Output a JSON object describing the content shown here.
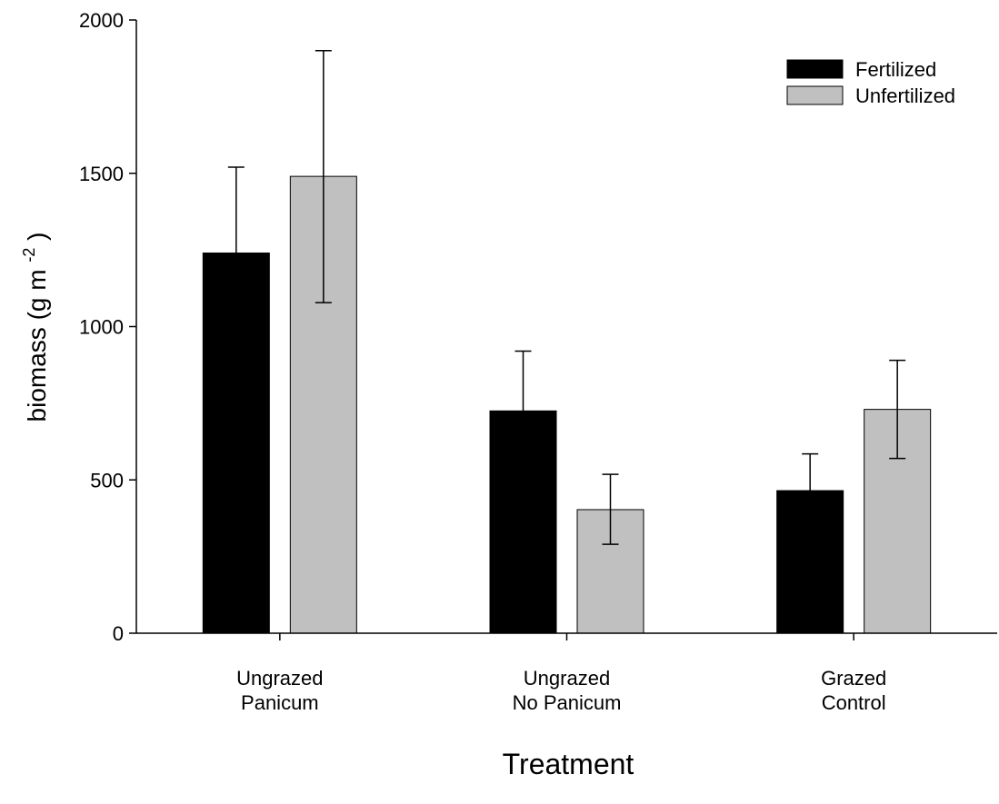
{
  "chart_data": {
    "type": "bar",
    "categories": [
      [
        "Ungrazed",
        "Panicum"
      ],
      [
        "Ungrazed",
        "No Panicum"
      ],
      [
        "Grazed",
        "Control"
      ]
    ],
    "series": [
      {
        "name": "Fertilized",
        "color": "#000000",
        "values": [
          1240,
          725,
          465
        ],
        "error_upper": [
          1520,
          920,
          585
        ],
        "error_lower": null
      },
      {
        "name": "Unfertilized",
        "color": "#c0c0c0",
        "values": [
          1490,
          403,
          730
        ],
        "error_upper": [
          1900,
          518,
          890
        ],
        "error_lower": [
          1078,
          290,
          570
        ]
      }
    ],
    "xlabel": "Treatment",
    "ylabel": {
      "main": "biomass (g m",
      "superscript": "-2",
      "close": ")"
    },
    "ylim": [
      0,
      2000
    ],
    "yticks": [
      "0",
      "500",
      "1000",
      "1500",
      "2000"
    ],
    "ytick_values": [
      0,
      500,
      1000,
      1500,
      2000
    ],
    "grid": false,
    "legend_position": "top-right"
  }
}
